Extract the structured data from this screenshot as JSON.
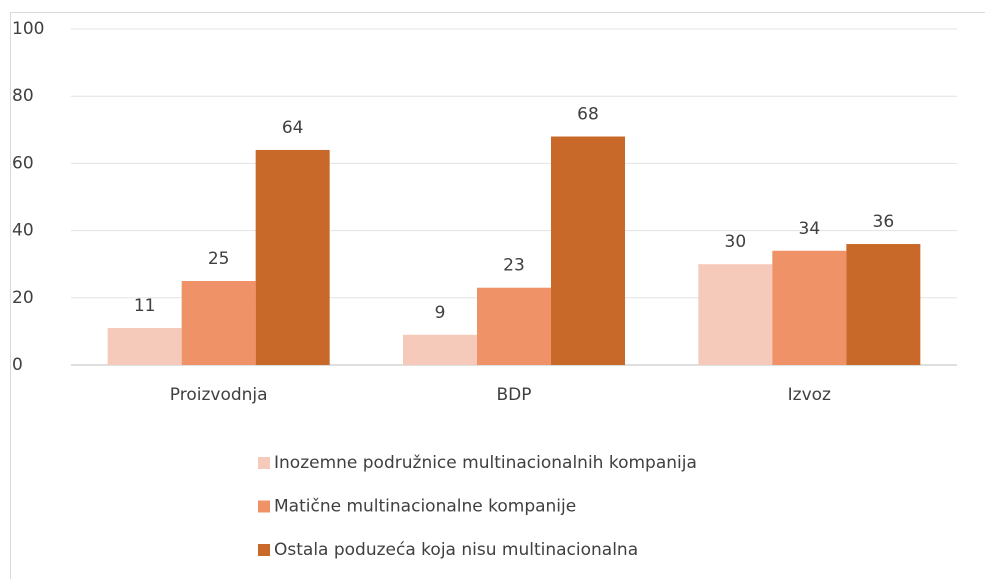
{
  "chart_data": {
    "type": "bar",
    "categories": [
      "Proizvodnja",
      "BDP",
      "Izvoz"
    ],
    "series": [
      {
        "name": "Inozemne podružnice multinacionalnih kompanija",
        "color": "#f6cabb",
        "values": [
          11,
          9,
          30
        ]
      },
      {
        "name": "Matične multinacionalne kompanije",
        "color": "#ef9268",
        "values": [
          25,
          23,
          34
        ]
      },
      {
        "name": "Ostala poduzeća koja nisu multinacionalna",
        "color": "#c8692a",
        "values": [
          64,
          68,
          36
        ]
      }
    ],
    "ylim": [
      0,
      100
    ],
    "yticks": [
      0,
      20,
      40,
      60,
      80,
      100
    ],
    "grid": true,
    "legend": "bottom"
  }
}
